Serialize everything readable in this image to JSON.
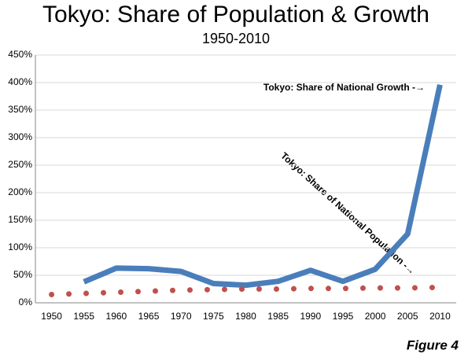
{
  "chart_data": {
    "type": "line",
    "title": "Tokyo: Share of Population & Growth",
    "subtitle": "1950-2010",
    "categories": [
      "1950",
      "1955",
      "1960",
      "1965",
      "1970",
      "1975",
      "1980",
      "1985",
      "1990",
      "1995",
      "2000",
      "2005",
      "2010"
    ],
    "series": [
      {
        "name": "Tokyo: Share of National Growth",
        "color": "#4a7ebb",
        "style": "solid",
        "values": [
          null,
          38,
          63,
          62,
          57,
          35,
          32,
          39,
          59,
          39,
          61,
          125,
          396
        ]
      },
      {
        "name": "Tokyo: Share of National Population",
        "color": "#c0504d",
        "style": "dotted",
        "values": [
          15,
          17,
          19,
          21,
          23,
          24,
          25,
          25,
          26,
          26,
          27,
          27,
          28
        ]
      }
    ],
    "ylim": [
      0,
      450
    ],
    "yticks": [
      {
        "value": 0,
        "label": "0%"
      },
      {
        "value": 50,
        "label": "50%"
      },
      {
        "value": 100,
        "label": "100%"
      },
      {
        "value": 150,
        "label": "150%"
      },
      {
        "value": 200,
        "label": "200%"
      },
      {
        "value": 250,
        "label": "250%"
      },
      {
        "value": 300,
        "label": "300%"
      },
      {
        "value": 350,
        "label": "350%"
      },
      {
        "value": 400,
        "label": "400%"
      },
      {
        "value": 450,
        "label": "450%"
      }
    ],
    "grid": true,
    "annotations": [
      "Tokyo: Share of National Growth -→",
      "Tokyo: Share of National Population -→"
    ],
    "figure_label": "Figure 4"
  }
}
